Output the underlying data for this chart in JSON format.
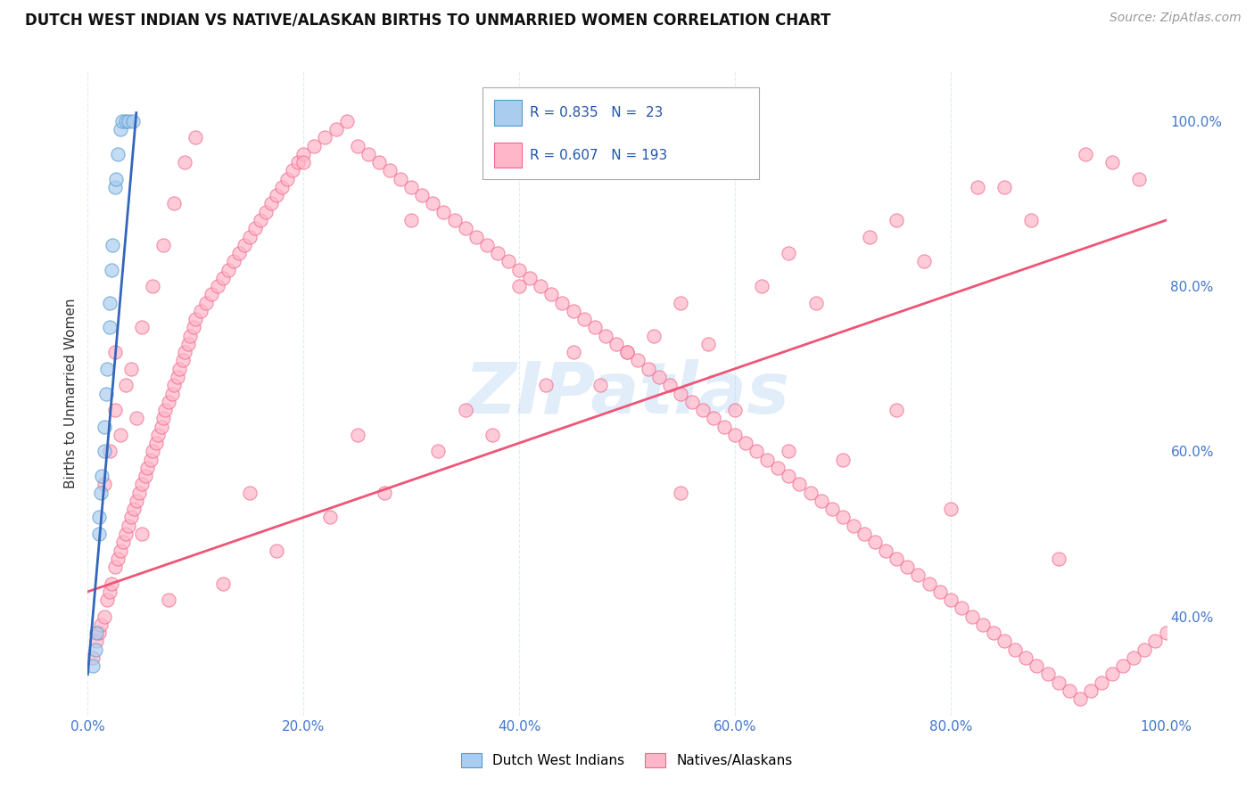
{
  "title": "DUTCH WEST INDIAN VS NATIVE/ALASKAN BIRTHS TO UNMARRIED WOMEN CORRELATION CHART",
  "source_text": "Source: ZipAtlas.com",
  "ylabel": "Births to Unmarried Women",
  "watermark": "ZIPatlas",
  "blue_R": 0.835,
  "blue_N": 23,
  "pink_R": 0.607,
  "pink_N": 193,
  "xlim": [
    0.0,
    1.0
  ],
  "ylim": [
    0.28,
    1.06
  ],
  "xtick_labels": [
    "0.0%",
    "20.0%",
    "40.0%",
    "60.0%",
    "80.0%",
    "100.0%"
  ],
  "xtick_vals": [
    0.0,
    0.2,
    0.4,
    0.6,
    0.8,
    1.0
  ],
  "ytick_labels": [
    "100.0%",
    "80.0%",
    "60.0%",
    "40.0%"
  ],
  "ytick_vals": [
    1.0,
    0.8,
    0.6,
    0.4
  ],
  "blue_scatter_color": "#aaccee",
  "blue_scatter_edge": "#5599cc",
  "pink_scatter_color": "#ffb6c8",
  "pink_scatter_edge": "#ee6688",
  "blue_line_color": "#3366bb",
  "pink_line_color": "#ee5577",
  "legend_blue_label": "Dutch West Indians",
  "legend_pink_label": "Natives/Alaskans",
  "title_color": "#111111",
  "axis_label_color": "#333333",
  "tick_color": "#4477cc",
  "background_color": "#ffffff",
  "grid_color": "#ddecf8",
  "blue_scatter_x": [
    0.005,
    0.007,
    0.008,
    0.01,
    0.01,
    0.012,
    0.013,
    0.015,
    0.015,
    0.017,
    0.018,
    0.02,
    0.02,
    0.022,
    0.023,
    0.025,
    0.026,
    0.028,
    0.03,
    0.032,
    0.035,
    0.038,
    0.042
  ],
  "blue_scatter_y": [
    0.34,
    0.36,
    0.38,
    0.5,
    0.52,
    0.55,
    0.57,
    0.6,
    0.63,
    0.67,
    0.7,
    0.75,
    0.78,
    0.82,
    0.85,
    0.92,
    0.93,
    0.96,
    0.99,
    1.0,
    1.0,
    1.0,
    1.0
  ],
  "pink_trend_x0": 0.0,
  "pink_trend_y0": 0.43,
  "pink_trend_x1": 1.0,
  "pink_trend_y1": 0.88,
  "pink_scatter_x": [
    0.005,
    0.008,
    0.01,
    0.012,
    0.015,
    0.018,
    0.02,
    0.022,
    0.025,
    0.028,
    0.03,
    0.033,
    0.035,
    0.038,
    0.04,
    0.043,
    0.045,
    0.048,
    0.05,
    0.053,
    0.055,
    0.058,
    0.06,
    0.063,
    0.065,
    0.068,
    0.07,
    0.072,
    0.075,
    0.078,
    0.08,
    0.083,
    0.085,
    0.088,
    0.09,
    0.093,
    0.095,
    0.098,
    0.1,
    0.105,
    0.11,
    0.115,
    0.12,
    0.125,
    0.13,
    0.135,
    0.14,
    0.145,
    0.15,
    0.155,
    0.16,
    0.165,
    0.17,
    0.175,
    0.18,
    0.185,
    0.19,
    0.195,
    0.2,
    0.21,
    0.22,
    0.23,
    0.24,
    0.25,
    0.26,
    0.27,
    0.28,
    0.29,
    0.3,
    0.31,
    0.32,
    0.33,
    0.34,
    0.35,
    0.36,
    0.37,
    0.38,
    0.39,
    0.4,
    0.41,
    0.42,
    0.43,
    0.44,
    0.45,
    0.46,
    0.47,
    0.48,
    0.49,
    0.5,
    0.51,
    0.52,
    0.53,
    0.54,
    0.55,
    0.56,
    0.57,
    0.58,
    0.59,
    0.6,
    0.61,
    0.62,
    0.63,
    0.64,
    0.65,
    0.66,
    0.67,
    0.68,
    0.69,
    0.7,
    0.71,
    0.72,
    0.73,
    0.74,
    0.75,
    0.76,
    0.77,
    0.78,
    0.79,
    0.8,
    0.81,
    0.82,
    0.83,
    0.84,
    0.85,
    0.86,
    0.87,
    0.88,
    0.89,
    0.9,
    0.91,
    0.92,
    0.93,
    0.94,
    0.95,
    0.96,
    0.97,
    0.98,
    0.99,
    1.0,
    0.025,
    0.035,
    0.045,
    0.015,
    0.02,
    0.03,
    0.025,
    0.04,
    0.05,
    0.06,
    0.07,
    0.08,
    0.09,
    0.1,
    0.2,
    0.3,
    0.4,
    0.5,
    0.6,
    0.7,
    0.8,
    0.9,
    0.35,
    0.45,
    0.55,
    0.65,
    0.75,
    0.85,
    0.95,
    0.15,
    0.25,
    0.05,
    0.55,
    0.65,
    0.75,
    0.075,
    0.175,
    0.275,
    0.375,
    0.475,
    0.575,
    0.675,
    0.775,
    0.875,
    0.975,
    0.125,
    0.225,
    0.325,
    0.425,
    0.525,
    0.625,
    0.725,
    0.825,
    0.925
  ],
  "pink_scatter_y": [
    0.35,
    0.37,
    0.38,
    0.39,
    0.4,
    0.42,
    0.43,
    0.44,
    0.46,
    0.47,
    0.48,
    0.49,
    0.5,
    0.51,
    0.52,
    0.53,
    0.54,
    0.55,
    0.56,
    0.57,
    0.58,
    0.59,
    0.6,
    0.61,
    0.62,
    0.63,
    0.64,
    0.65,
    0.66,
    0.67,
    0.68,
    0.69,
    0.7,
    0.71,
    0.72,
    0.73,
    0.74,
    0.75,
    0.76,
    0.77,
    0.78,
    0.79,
    0.8,
    0.81,
    0.82,
    0.83,
    0.84,
    0.85,
    0.86,
    0.87,
    0.88,
    0.89,
    0.9,
    0.91,
    0.92,
    0.93,
    0.94,
    0.95,
    0.96,
    0.97,
    0.98,
    0.99,
    1.0,
    0.97,
    0.96,
    0.95,
    0.94,
    0.93,
    0.92,
    0.91,
    0.9,
    0.89,
    0.88,
    0.87,
    0.86,
    0.85,
    0.84,
    0.83,
    0.82,
    0.81,
    0.8,
    0.79,
    0.78,
    0.77,
    0.76,
    0.75,
    0.74,
    0.73,
    0.72,
    0.71,
    0.7,
    0.69,
    0.68,
    0.67,
    0.66,
    0.65,
    0.64,
    0.63,
    0.62,
    0.61,
    0.6,
    0.59,
    0.58,
    0.57,
    0.56,
    0.55,
    0.54,
    0.53,
    0.52,
    0.51,
    0.5,
    0.49,
    0.48,
    0.47,
    0.46,
    0.45,
    0.44,
    0.43,
    0.42,
    0.41,
    0.4,
    0.39,
    0.38,
    0.37,
    0.36,
    0.35,
    0.34,
    0.33,
    0.32,
    0.31,
    0.3,
    0.31,
    0.32,
    0.33,
    0.34,
    0.35,
    0.36,
    0.37,
    0.38,
    0.72,
    0.68,
    0.64,
    0.56,
    0.6,
    0.62,
    0.65,
    0.7,
    0.75,
    0.8,
    0.85,
    0.9,
    0.95,
    0.98,
    0.95,
    0.88,
    0.8,
    0.72,
    0.65,
    0.59,
    0.53,
    0.47,
    0.65,
    0.72,
    0.78,
    0.84,
    0.88,
    0.92,
    0.95,
    0.55,
    0.62,
    0.5,
    0.55,
    0.6,
    0.65,
    0.42,
    0.48,
    0.55,
    0.62,
    0.68,
    0.73,
    0.78,
    0.83,
    0.88,
    0.93,
    0.44,
    0.52,
    0.6,
    0.68,
    0.74,
    0.8,
    0.86,
    0.92,
    0.96
  ]
}
